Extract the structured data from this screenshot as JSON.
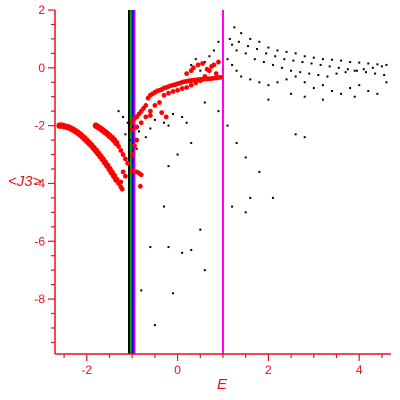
{
  "chart_data": {
    "type": "scatter",
    "xlabel": "E",
    "ylabel": "<J3>",
    "xlim": [
      -2.7,
      4.7
    ],
    "ylim": [
      -9.9,
      2.0
    ],
    "x_ticks": [
      -2,
      0,
      2,
      4
    ],
    "y_ticks": [
      2,
      0,
      -2,
      -4,
      -6,
      -8
    ],
    "x_tick_labels": [
      "-2",
      "0",
      "2",
      "4"
    ],
    "y_tick_labels": [
      "2",
      "0",
      "-2",
      "-4",
      "-6",
      "-8"
    ],
    "grid": false,
    "colors": {
      "axis": "#e8111a",
      "red_series": "#ff0000",
      "black_series": "#000000"
    },
    "vertical_lines": [
      {
        "x": -1.07,
        "color": "#000000"
      },
      {
        "x": -1.03,
        "color": "#00aa00"
      },
      {
        "x": -0.99,
        "color": "#0000ff"
      },
      {
        "x": -0.95,
        "color": "#cc00cc"
      },
      {
        "x": 1.0,
        "color": "#ff00ff"
      }
    ],
    "series": [
      {
        "color": "#ff0000",
        "marker": "large",
        "points": [
          [
            -2.6,
            -2.0
          ],
          [
            -2.55,
            -2.0
          ],
          [
            -2.5,
            -2.02
          ],
          [
            -2.45,
            -2.04
          ],
          [
            -2.4,
            -2.06
          ],
          [
            -2.35,
            -2.1
          ],
          [
            -2.3,
            -2.14
          ],
          [
            -2.25,
            -2.19
          ],
          [
            -2.2,
            -2.24
          ],
          [
            -2.15,
            -2.3
          ],
          [
            -2.1,
            -2.37
          ],
          [
            -2.05,
            -2.44
          ],
          [
            -2.0,
            -2.52
          ],
          [
            -1.95,
            -2.6
          ],
          [
            -1.9,
            -2.68
          ],
          [
            -1.85,
            -2.77
          ],
          [
            -1.8,
            -2.86
          ],
          [
            -1.75,
            -2.96
          ],
          [
            -1.7,
            -3.06
          ],
          [
            -1.65,
            -3.16
          ],
          [
            -1.6,
            -3.27
          ],
          [
            -1.55,
            -3.38
          ],
          [
            -1.5,
            -3.5
          ],
          [
            -1.45,
            -3.62
          ],
          [
            -1.4,
            -3.74
          ],
          [
            -1.35,
            -3.87
          ],
          [
            -1.3,
            -4.0
          ],
          [
            -1.25,
            -4.12
          ],
          [
            -1.22,
            -4.2
          ],
          [
            -1.8,
            -2.0
          ],
          [
            -1.75,
            -2.05
          ],
          [
            -1.7,
            -2.1
          ],
          [
            -1.65,
            -2.16
          ],
          [
            -1.6,
            -2.22
          ],
          [
            -1.55,
            -2.28
          ],
          [
            -1.5,
            -2.35
          ],
          [
            -1.45,
            -2.42
          ],
          [
            -1.4,
            -2.5
          ],
          [
            -1.35,
            -2.6
          ],
          [
            -1.3,
            -2.72
          ],
          [
            -1.25,
            -2.86
          ],
          [
            -1.2,
            -3.0
          ],
          [
            -1.15,
            -3.15
          ],
          [
            -1.1,
            -3.3
          ],
          [
            -1.0,
            -3.55
          ],
          [
            -0.9,
            -3.6
          ],
          [
            -0.85,
            -3.65
          ],
          [
            -0.8,
            -3.7
          ],
          [
            -1.0,
            -3.0
          ],
          [
            -0.95,
            -2.7
          ],
          [
            -0.9,
            -2.5
          ],
          [
            -1.2,
            -3.6
          ],
          [
            -1.15,
            -3.75
          ],
          [
            -1.25,
            -3.95
          ],
          [
            -0.82,
            -4.1
          ],
          [
            -1.0,
            -1.9
          ],
          [
            -0.95,
            -1.75
          ],
          [
            -0.9,
            -1.7
          ],
          [
            -0.85,
            -1.6
          ],
          [
            -0.8,
            -1.5
          ],
          [
            -0.75,
            -1.4
          ],
          [
            -0.7,
            -1.3
          ],
          [
            -1.0,
            -2.15
          ],
          [
            -0.9,
            -2.05
          ],
          [
            -0.8,
            -1.9
          ],
          [
            -0.7,
            -1.7
          ],
          [
            -0.6,
            -1.5
          ],
          [
            -0.65,
            -1.05
          ],
          [
            -0.6,
            -0.95
          ],
          [
            -0.55,
            -0.9
          ],
          [
            -0.5,
            -0.85
          ],
          [
            -0.45,
            -0.8
          ],
          [
            -0.4,
            -0.78
          ],
          [
            -0.35,
            -0.75
          ],
          [
            -0.3,
            -0.7
          ],
          [
            -0.25,
            -0.68
          ],
          [
            -0.2,
            -0.65
          ],
          [
            -0.15,
            -0.62
          ],
          [
            -0.1,
            -0.6
          ],
          [
            -0.05,
            -0.58
          ],
          [
            0.0,
            -0.55
          ],
          [
            0.05,
            -0.53
          ],
          [
            0.1,
            -0.5
          ],
          [
            0.15,
            -0.48
          ],
          [
            0.2,
            -0.47
          ],
          [
            0.25,
            -0.45
          ],
          [
            0.3,
            -0.44
          ],
          [
            0.35,
            -0.43
          ],
          [
            0.4,
            -0.42
          ],
          [
            0.45,
            -0.41
          ],
          [
            0.5,
            -0.4
          ],
          [
            0.55,
            -0.4
          ],
          [
            0.6,
            -0.39
          ],
          [
            0.65,
            -0.38
          ],
          [
            0.7,
            -0.38
          ],
          [
            0.75,
            -0.37
          ],
          [
            0.8,
            -0.36
          ],
          [
            0.85,
            -0.35
          ],
          [
            0.9,
            -0.34
          ],
          [
            0.95,
            -0.33
          ],
          [
            -0.3,
            -0.95
          ],
          [
            -0.2,
            -0.88
          ],
          [
            -0.1,
            -0.82
          ],
          [
            0.0,
            -0.78
          ],
          [
            0.1,
            -0.72
          ],
          [
            0.2,
            -0.68
          ],
          [
            0.3,
            -0.6
          ],
          [
            0.4,
            -0.52
          ],
          [
            0.5,
            -0.45
          ],
          [
            0.6,
            -0.3
          ],
          [
            0.7,
            -0.1
          ],
          [
            0.8,
            0.1
          ],
          [
            0.9,
            0.2
          ],
          [
            0.2,
            -0.2
          ],
          [
            0.3,
            -0.1
          ],
          [
            0.35,
            0.0
          ],
          [
            0.45,
            0.1
          ],
          [
            0.55,
            0.15
          ],
          [
            0.65,
            -0.05
          ],
          [
            0.75,
            0.05
          ],
          [
            0.85,
            -0.2
          ],
          [
            -0.5,
            -1.3
          ],
          [
            -0.4,
            -1.2
          ],
          [
            -0.35,
            -1.55
          ],
          [
            -0.25,
            -1.7
          ],
          [
            -0.6,
            -1.65
          ]
        ]
      },
      {
        "color": "#000000",
        "marker": "small",
        "points": [
          [
            1.25,
            1.4
          ],
          [
            1.4,
            1.2
          ],
          [
            1.6,
            1.0
          ],
          [
            1.8,
            0.9
          ],
          [
            2.0,
            0.7
          ],
          [
            2.2,
            0.6
          ],
          [
            2.4,
            0.55
          ],
          [
            2.6,
            0.5
          ],
          [
            2.8,
            0.4
          ],
          [
            3.0,
            0.35
          ],
          [
            3.2,
            0.3
          ],
          [
            3.4,
            0.28
          ],
          [
            3.6,
            0.25
          ],
          [
            3.8,
            0.2
          ],
          [
            4.0,
            0.18
          ],
          [
            4.2,
            0.15
          ],
          [
            4.4,
            0.12
          ],
          [
            4.6,
            0.1
          ],
          [
            1.2,
            0.8
          ],
          [
            1.3,
            0.6
          ],
          [
            1.5,
            0.5
          ],
          [
            1.7,
            0.3
          ],
          [
            1.9,
            0.2
          ],
          [
            2.1,
            0.1
          ],
          [
            2.3,
            0.0
          ],
          [
            2.5,
            -0.1
          ],
          [
            2.7,
            -0.15
          ],
          [
            2.9,
            -0.2
          ],
          [
            3.1,
            -0.25
          ],
          [
            3.3,
            -0.3
          ],
          [
            3.5,
            -0.2
          ],
          [
            3.7,
            -0.15
          ],
          [
            3.9,
            -0.1
          ],
          [
            4.1,
            -0.05
          ],
          [
            4.3,
            0.0
          ],
          [
            4.5,
            0.05
          ],
          [
            1.1,
            0.3
          ],
          [
            1.2,
            0.1
          ],
          [
            1.3,
            -0.1
          ],
          [
            1.4,
            -0.3
          ],
          [
            1.6,
            -0.4
          ],
          [
            1.8,
            -0.5
          ],
          [
            2.0,
            -0.6
          ],
          [
            2.2,
            -0.5
          ],
          [
            2.4,
            -0.4
          ],
          [
            2.6,
            -0.3
          ],
          [
            2.8,
            -0.5
          ],
          [
            3.0,
            -0.7
          ],
          [
            3.2,
            -0.6
          ],
          [
            3.4,
            -0.8
          ],
          [
            3.6,
            -0.9
          ],
          [
            3.8,
            -0.7
          ],
          [
            4.0,
            -0.6
          ],
          [
            4.2,
            -0.8
          ],
          [
            4.4,
            -0.9
          ],
          [
            4.6,
            -0.5
          ],
          [
            1.15,
            1.0
          ],
          [
            1.35,
            0.9
          ],
          [
            1.55,
            0.75
          ],
          [
            1.75,
            0.65
          ],
          [
            1.95,
            0.5
          ],
          [
            2.15,
            0.4
          ],
          [
            2.35,
            0.3
          ],
          [
            2.55,
            0.25
          ],
          [
            2.75,
            0.2
          ],
          [
            2.95,
            0.15
          ],
          [
            3.15,
            0.1
          ],
          [
            3.35,
            0.05
          ],
          [
            3.55,
            0.0
          ],
          [
            3.75,
            -0.05
          ],
          [
            3.95,
            -0.1
          ],
          [
            4.15,
            -0.15
          ],
          [
            4.35,
            -0.2
          ],
          [
            4.55,
            -0.25
          ],
          [
            2.8,
            -1.0
          ],
          [
            3.2,
            -1.1
          ],
          [
            3.9,
            -1.0
          ],
          [
            2.5,
            -0.9
          ],
          [
            2.0,
            -1.1
          ],
          [
            0.9,
            0.9
          ],
          [
            0.8,
            0.6
          ],
          [
            0.7,
            0.4
          ],
          [
            0.6,
            0.2
          ],
          [
            0.5,
            -0.1
          ],
          [
            0.4,
            0.3
          ],
          [
            0.3,
            0.1
          ],
          [
            -1.3,
            -1.5
          ],
          [
            -1.2,
            -1.7
          ],
          [
            -1.1,
            -1.9
          ],
          [
            -1.0,
            -2.1
          ],
          [
            -1.15,
            -2.3
          ],
          [
            -1.05,
            -2.5
          ],
          [
            -0.9,
            -2.8
          ],
          [
            -0.85,
            -2.2
          ],
          [
            -0.7,
            -2.4
          ],
          [
            -0.6,
            -2.1
          ],
          [
            -0.5,
            -1.8
          ],
          [
            -0.3,
            -1.9
          ],
          [
            -0.2,
            -2.0
          ],
          [
            -0.1,
            -1.6
          ],
          [
            0.1,
            -1.7
          ],
          [
            0.2,
            -1.9
          ],
          [
            0.6,
            -1.2
          ],
          [
            0.9,
            -1.5
          ],
          [
            1.1,
            -2.0
          ],
          [
            1.3,
            -2.6
          ],
          [
            1.5,
            -3.1
          ],
          [
            1.8,
            -3.6
          ],
          [
            2.1,
            -4.5
          ],
          [
            2.6,
            -2.3
          ],
          [
            2.8,
            -2.4
          ],
          [
            1.2,
            -4.8
          ],
          [
            1.5,
            -5.0
          ],
          [
            0.5,
            -5.6
          ],
          [
            0.3,
            -6.3
          ],
          [
            0.6,
            -7.0
          ],
          [
            0.1,
            -6.4
          ],
          [
            -0.2,
            -6.2
          ],
          [
            -0.6,
            -6.2
          ],
          [
            -0.1,
            -7.8
          ],
          [
            -0.8,
            -7.7
          ],
          [
            -0.5,
            -8.9
          ],
          [
            0.0,
            -3.0
          ],
          [
            -0.3,
            -4.8
          ],
          [
            -0.2,
            -3.4
          ],
          [
            1.6,
            -4.5
          ],
          [
            0.3,
            -2.6
          ]
        ]
      }
    ]
  }
}
